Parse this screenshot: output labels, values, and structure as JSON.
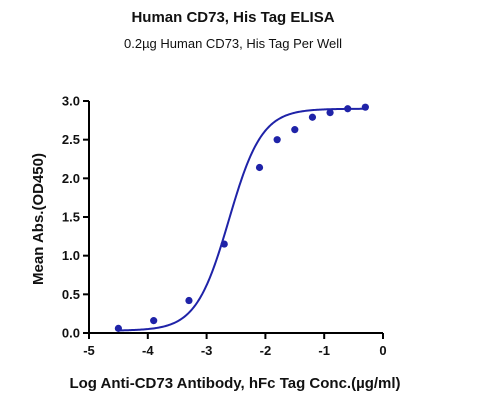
{
  "chart_data": {
    "type": "scatter",
    "title": "Human CD73, His Tag ELISA",
    "subtitle": "0.2µg Human CD73, His Tag Per Well",
    "xlabel": "Log Anti-CD73 Antibody, hFc Tag Conc.(µg/ml)",
    "ylabel": "Mean Abs.(OD450)",
    "xlim": [
      -5,
      0
    ],
    "ylim": [
      0,
      3
    ],
    "x_ticks": [
      "-5",
      "-4",
      "-3",
      "-2",
      "-1",
      "0"
    ],
    "y_ticks": [
      "0.0",
      "0.5",
      "1.0",
      "1.5",
      "2.0",
      "2.5",
      "3.0"
    ],
    "grid": false,
    "colors": {
      "series": "#1f23a8",
      "axis": "#000000"
    },
    "series": [
      {
        "x": [
          -4.5,
          -3.9,
          -3.3,
          -2.7,
          -2.1,
          -1.8,
          -1.5,
          -1.2,
          -0.9,
          -0.6,
          -0.3
        ],
        "y": [
          0.06,
          0.16,
          0.42,
          1.15,
          2.14,
          2.5,
          2.63,
          2.79,
          2.85,
          2.9,
          2.92
        ]
      }
    ],
    "fit_curve": {
      "model": "4PL",
      "bottom": 0.03,
      "top": 2.9,
      "logEC50": -2.62,
      "hill": 1.55
    }
  }
}
